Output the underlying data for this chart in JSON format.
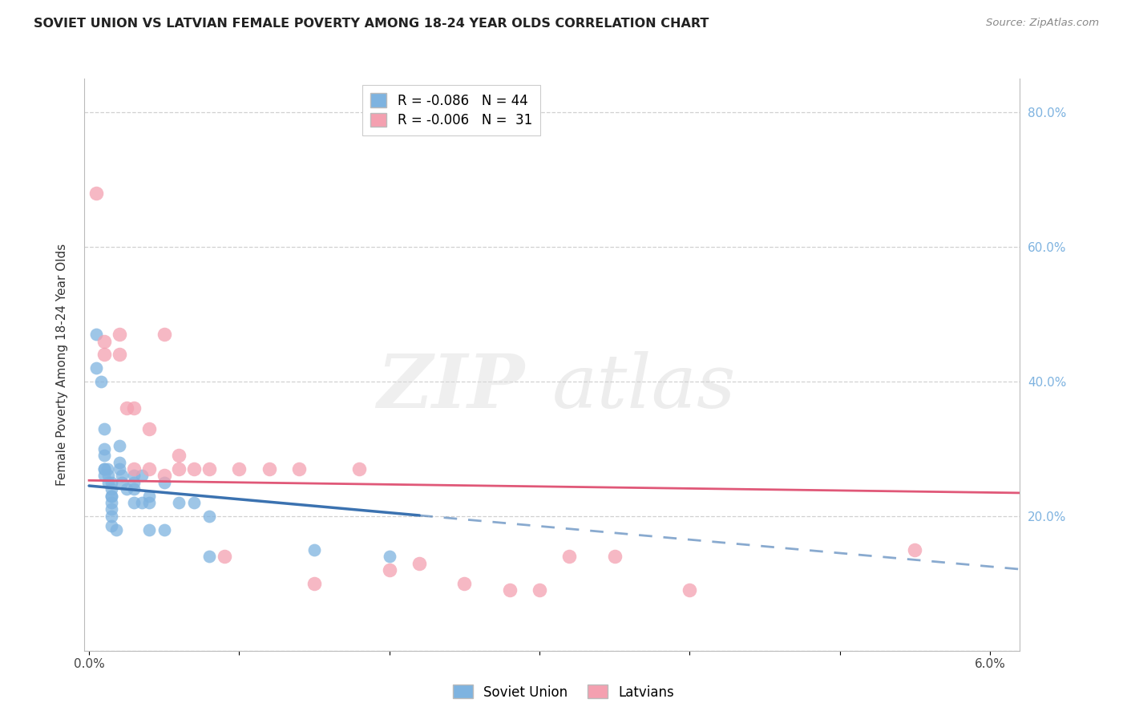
{
  "title": "SOVIET UNION VS LATVIAN FEMALE POVERTY AMONG 18-24 YEAR OLDS CORRELATION CHART",
  "source": "Source: ZipAtlas.com",
  "ylabel": "Female Poverty Among 18-24 Year Olds",
  "xlim": [
    -0.0003,
    0.062
  ],
  "ylim": [
    0.0,
    0.85
  ],
  "x_ticks": [
    0.0,
    0.01,
    0.02,
    0.03,
    0.04,
    0.05,
    0.06
  ],
  "x_tick_labels": [
    "0.0%",
    "",
    "",
    "",
    "",
    "",
    "6.0%"
  ],
  "y_ticks": [
    0.0,
    0.2,
    0.4,
    0.6,
    0.8
  ],
  "y_tick_labels_right": [
    "",
    "20.0%",
    "40.0%",
    "60.0%",
    "80.0%"
  ],
  "legend_blue_r": "-0.086",
  "legend_blue_n": "44",
  "legend_pink_r": "-0.006",
  "legend_pink_n": " 31",
  "blue_color": "#7EB3E0",
  "pink_color": "#F4A0B0",
  "trend_blue_color": "#3B72B0",
  "trend_pink_color": "#E05878",
  "soviet_x": [
    0.0005,
    0.0005,
    0.0008,
    0.001,
    0.001,
    0.001,
    0.001,
    0.001,
    0.001,
    0.0012,
    0.0013,
    0.0013,
    0.0015,
    0.0015,
    0.0015,
    0.0015,
    0.0015,
    0.0015,
    0.0015,
    0.0015,
    0.0018,
    0.002,
    0.002,
    0.002,
    0.0022,
    0.0022,
    0.0025,
    0.003,
    0.003,
    0.003,
    0.003,
    0.0035,
    0.0035,
    0.004,
    0.004,
    0.004,
    0.005,
    0.005,
    0.006,
    0.007,
    0.008,
    0.008,
    0.015,
    0.02
  ],
  "soviet_y": [
    0.47,
    0.42,
    0.4,
    0.33,
    0.3,
    0.29,
    0.27,
    0.27,
    0.26,
    0.27,
    0.26,
    0.25,
    0.25,
    0.24,
    0.23,
    0.23,
    0.22,
    0.21,
    0.2,
    0.185,
    0.18,
    0.305,
    0.28,
    0.27,
    0.26,
    0.25,
    0.24,
    0.26,
    0.25,
    0.24,
    0.22,
    0.26,
    0.22,
    0.23,
    0.22,
    0.18,
    0.25,
    0.18,
    0.22,
    0.22,
    0.2,
    0.14,
    0.15,
    0.14
  ],
  "latvian_x": [
    0.0005,
    0.001,
    0.001,
    0.002,
    0.002,
    0.0025,
    0.003,
    0.003,
    0.004,
    0.004,
    0.005,
    0.005,
    0.006,
    0.006,
    0.007,
    0.008,
    0.009,
    0.01,
    0.012,
    0.014,
    0.015,
    0.018,
    0.02,
    0.022,
    0.025,
    0.028,
    0.03,
    0.032,
    0.035,
    0.04,
    0.055
  ],
  "latvian_y": [
    0.68,
    0.46,
    0.44,
    0.47,
    0.44,
    0.36,
    0.36,
    0.27,
    0.33,
    0.27,
    0.47,
    0.26,
    0.29,
    0.27,
    0.27,
    0.27,
    0.14,
    0.27,
    0.27,
    0.27,
    0.1,
    0.27,
    0.12,
    0.13,
    0.1,
    0.09,
    0.09,
    0.14,
    0.14,
    0.09,
    0.15
  ],
  "blue_trend_x0": 0.0,
  "blue_trend_y0": 0.245,
  "blue_trend_x1": 0.025,
  "blue_trend_y1": 0.195,
  "blue_trend_solid_end": 0.022,
  "pink_trend_y": 0.253,
  "pink_trend_slope": -0.3
}
